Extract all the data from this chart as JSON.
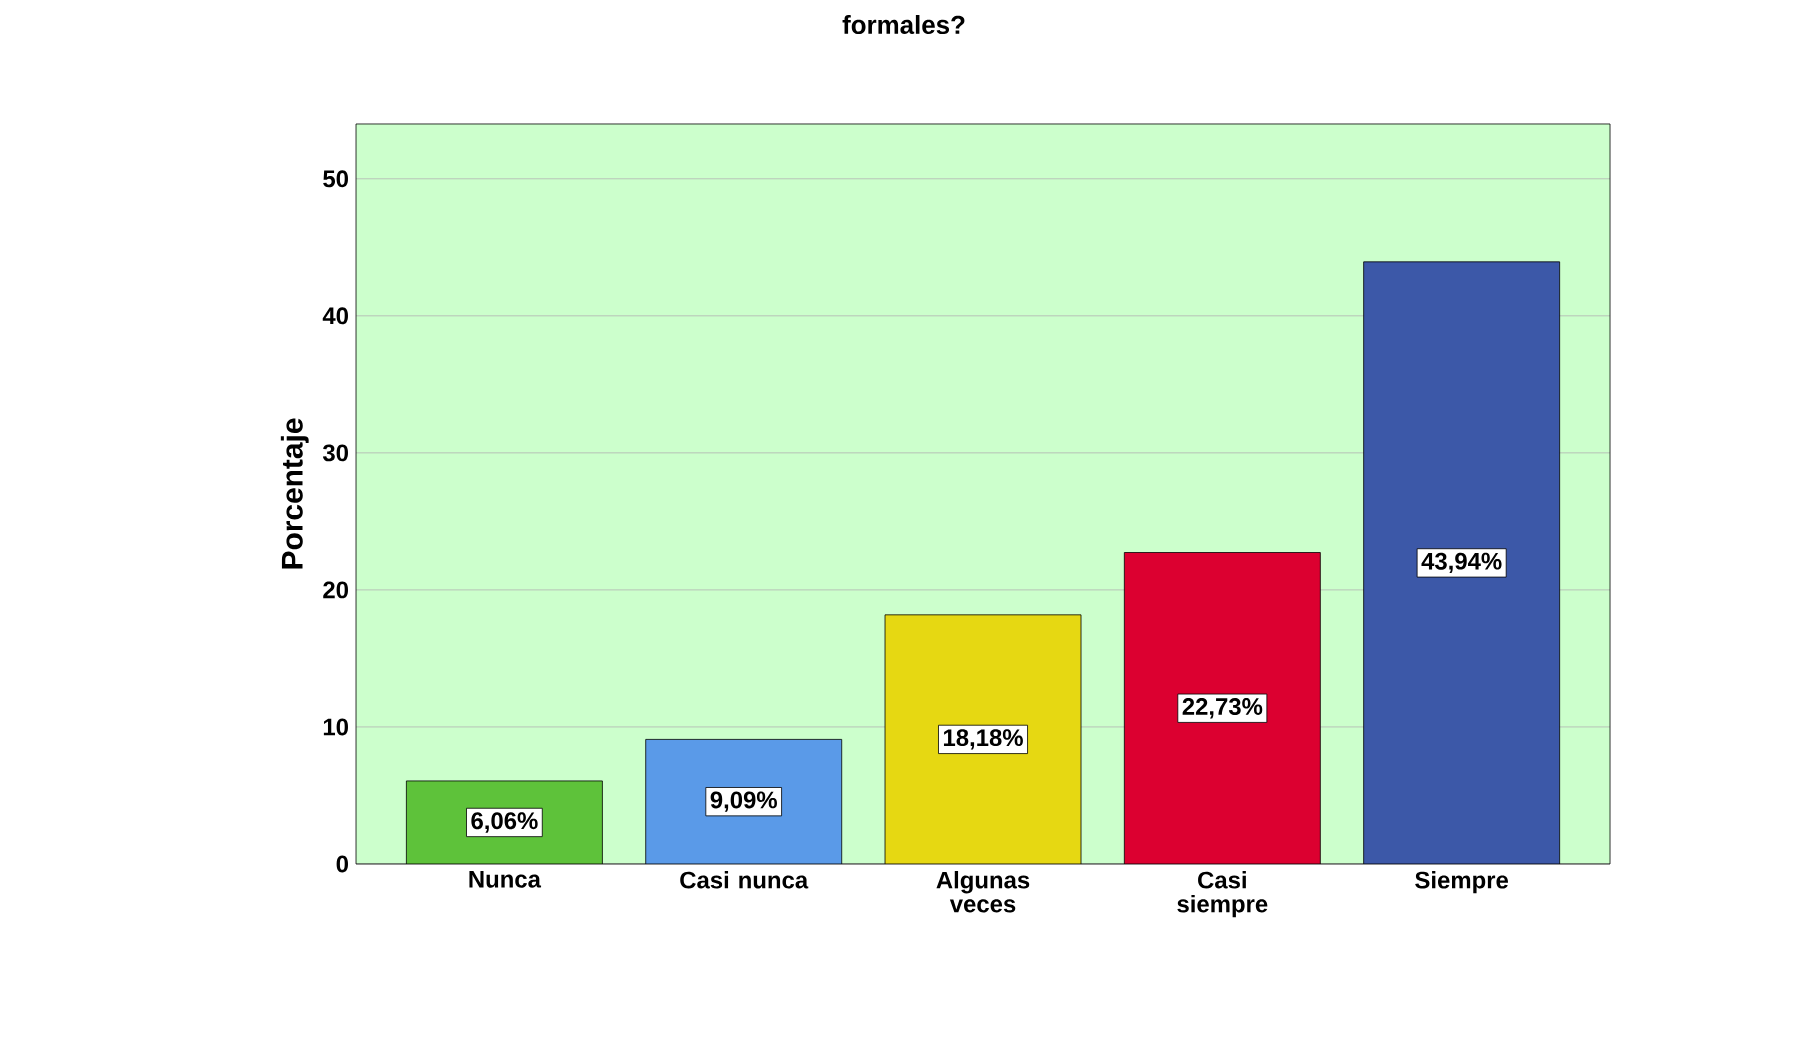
{
  "chart_data": {
    "type": "bar",
    "title": "formales?",
    "ylabel": "Porcentaje",
    "categories": [
      "Nunca",
      "Casi nunca",
      "Algunas veces",
      "Casi siempre",
      "Siempre"
    ],
    "values": [
      6.06,
      9.09,
      18.18,
      22.73,
      43.94
    ],
    "colors": [
      "#5ec23a",
      "#5a9ae8",
      "#e6d812",
      "#dc0030",
      "#3c58a8"
    ],
    "value_labels": [
      "6,06%",
      "9,09%",
      "18,18%",
      "22,73%",
      "43,94%"
    ],
    "ylim": [
      0,
      54
    ],
    "yticks": [
      0,
      10,
      20,
      30,
      40,
      50
    ],
    "grid": "y"
  }
}
